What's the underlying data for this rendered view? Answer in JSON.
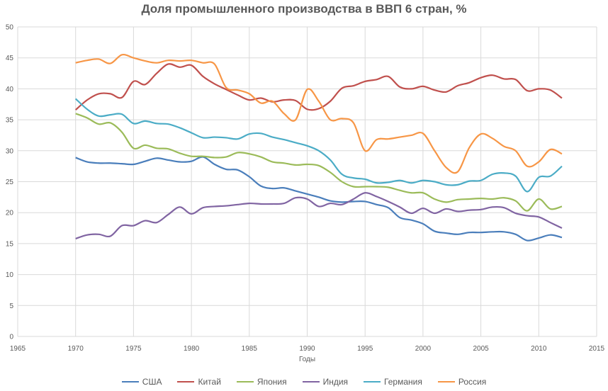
{
  "chart_data": {
    "type": "line",
    "title": "Доля промышленного производства в ВВП 6 стран, %",
    "xlabel": "Годы",
    "ylabel": "",
    "xlim": [
      1965,
      2015
    ],
    "ylim": [
      0,
      50
    ],
    "xticks": [
      1965,
      1970,
      1975,
      1980,
      1985,
      1990,
      1995,
      2000,
      2005,
      2010,
      2015
    ],
    "yticks": [
      0,
      5,
      10,
      15,
      20,
      25,
      30,
      35,
      40,
      45,
      50
    ],
    "grid": true,
    "legend": "bottom",
    "x_start": 1970,
    "series": [
      {
        "name": "США",
        "color": "#4a7ebb",
        "values": [
          28.9,
          28.2,
          28.0,
          28.0,
          27.9,
          27.8,
          28.3,
          28.8,
          28.5,
          28.2,
          28.3,
          29.0,
          27.8,
          27.0,
          26.9,
          25.8,
          24.3,
          23.9,
          24.0,
          23.5,
          23.0,
          22.5,
          21.9,
          21.7,
          21.8,
          21.8,
          21.3,
          20.8,
          19.2,
          18.8,
          18.2,
          17.0,
          16.7,
          16.5,
          16.8,
          16.8,
          16.9,
          16.9,
          16.5,
          15.5,
          15.9,
          16.4,
          16.0
        ]
      },
      {
        "name": "Китай",
        "color": "#c0504d",
        "values": [
          36.6,
          38.2,
          39.2,
          39.2,
          38.6,
          41.2,
          40.7,
          42.5,
          44.0,
          43.5,
          43.8,
          42.0,
          40.8,
          39.9,
          39.0,
          38.2,
          38.5,
          37.9,
          38.2,
          38.1,
          36.7,
          36.8,
          38.0,
          40.1,
          40.5,
          41.2,
          41.5,
          42.0,
          40.3,
          40.0,
          40.4,
          39.8,
          39.5,
          40.5,
          41.0,
          41.8,
          42.2,
          41.6,
          41.5,
          39.7,
          40.0,
          39.8,
          38.5
        ]
      },
      {
        "name": "Япония",
        "color": "#9bbb59",
        "values": [
          36.0,
          35.3,
          34.3,
          34.5,
          33.0,
          30.4,
          30.9,
          30.4,
          30.3,
          29.6,
          29.1,
          29.1,
          28.9,
          29.0,
          29.7,
          29.5,
          29.0,
          28.2,
          28.0,
          27.7,
          27.8,
          27.6,
          26.5,
          25.0,
          24.2,
          24.2,
          24.2,
          24.1,
          23.6,
          23.2,
          23.2,
          22.2,
          21.7,
          22.1,
          22.2,
          22.3,
          22.2,
          22.4,
          21.9,
          20.3,
          22.2,
          20.6,
          21.0
        ]
      },
      {
        "name": "Индия",
        "color": "#8064a2",
        "values": [
          15.8,
          16.4,
          16.5,
          16.2,
          17.9,
          17.9,
          18.7,
          18.4,
          19.7,
          20.9,
          19.8,
          20.8,
          21.0,
          21.1,
          21.3,
          21.5,
          21.4,
          21.4,
          21.5,
          22.4,
          22.2,
          21.0,
          21.5,
          21.3,
          22.2,
          23.2,
          22.6,
          21.8,
          20.9,
          19.9,
          20.7,
          19.9,
          20.6,
          20.2,
          20.4,
          20.5,
          20.9,
          20.8,
          19.9,
          19.5,
          19.3,
          18.4,
          17.5
        ]
      },
      {
        "name": "Германия",
        "color": "#4bacc6",
        "values": [
          38.4,
          36.7,
          35.6,
          35.8,
          35.9,
          34.4,
          34.8,
          34.4,
          34.3,
          33.7,
          32.9,
          32.1,
          32.2,
          32.1,
          31.9,
          32.7,
          32.8,
          32.2,
          31.8,
          31.3,
          30.8,
          30.0,
          28.5,
          26.2,
          25.6,
          25.4,
          24.8,
          24.9,
          25.2,
          24.8,
          25.2,
          25.0,
          24.5,
          24.5,
          25.1,
          25.2,
          26.2,
          26.4,
          25.9,
          23.4,
          25.7,
          25.9,
          27.5
        ]
      },
      {
        "name": "Россия",
        "color": "#f79646",
        "values": [
          44.2,
          44.6,
          44.8,
          44.1,
          45.5,
          45.0,
          44.5,
          44.2,
          44.6,
          44.5,
          44.6,
          44.2,
          44.0,
          40.2,
          39.8,
          39.2,
          37.7,
          38.0,
          36.0,
          35.0,
          39.9,
          38.0,
          35.0,
          35.2,
          34.5,
          30.0,
          31.8,
          31.9,
          32.2,
          32.5,
          32.8,
          30.0,
          27.3,
          26.6,
          30.5,
          32.7,
          32.0,
          30.7,
          30.0,
          27.5,
          28.2,
          30.2,
          29.5
        ]
      }
    ]
  }
}
